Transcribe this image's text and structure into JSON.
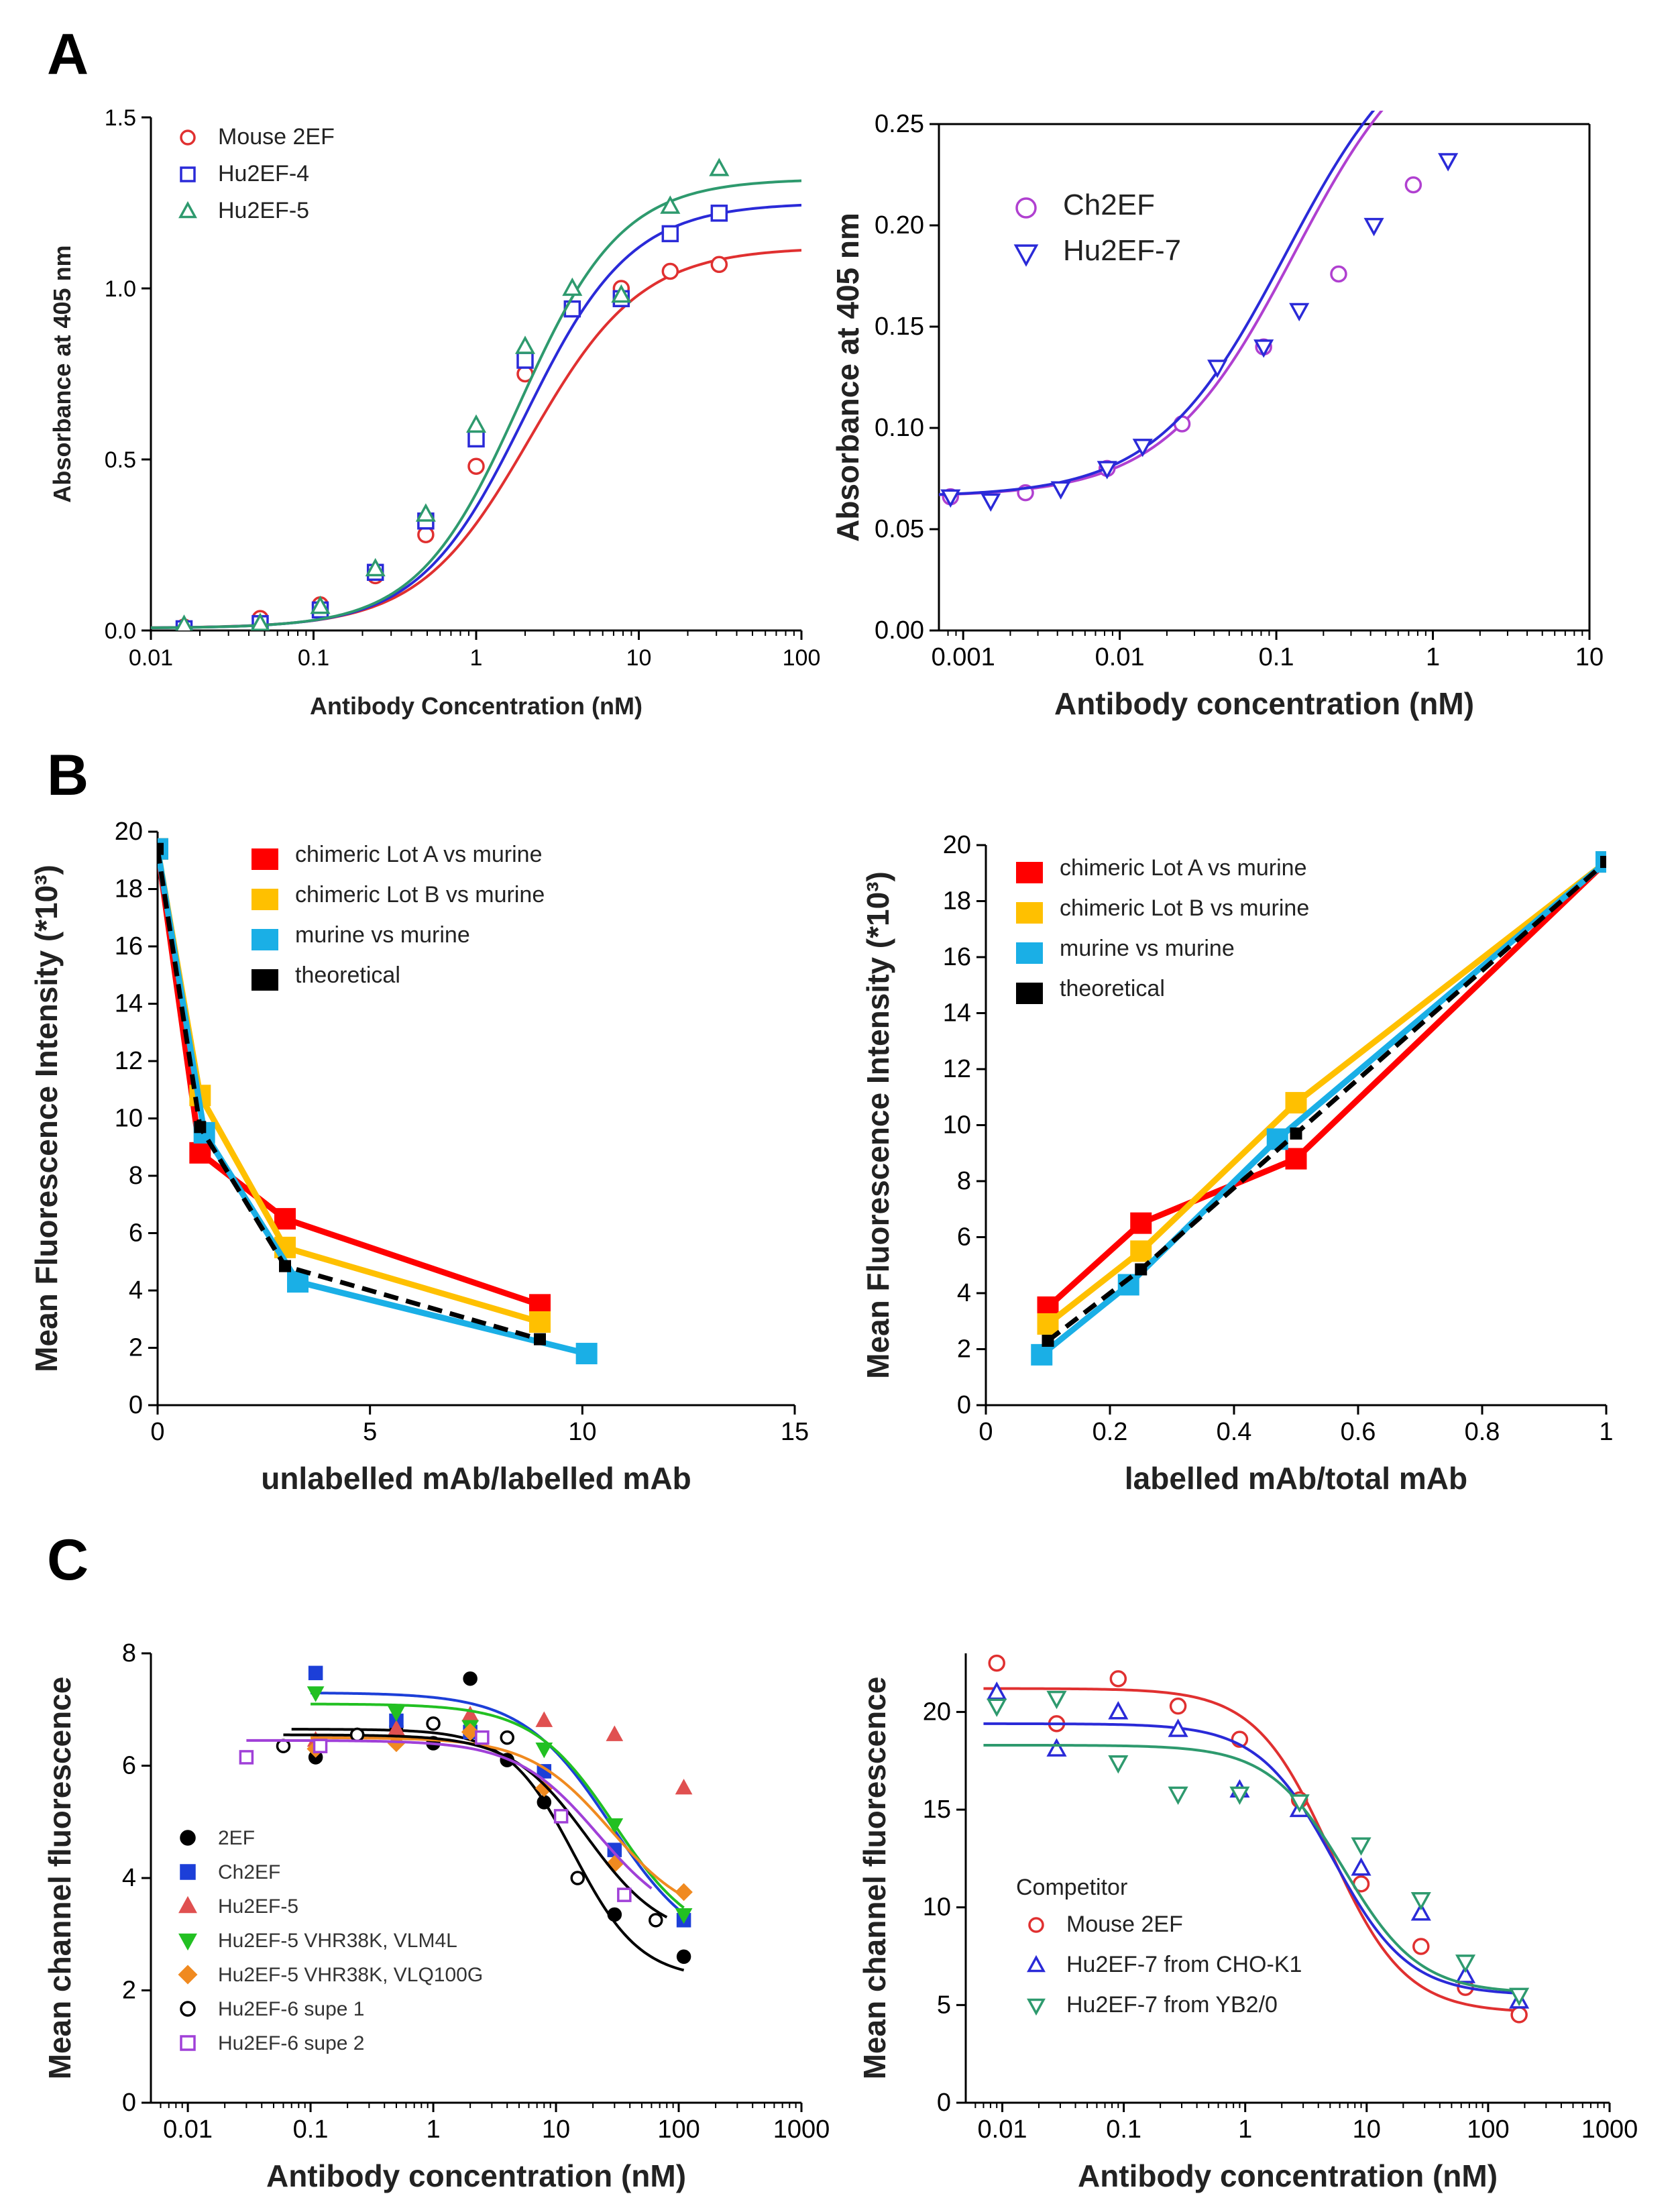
{
  "panel_labels": [
    "A",
    "B",
    "C"
  ],
  "chart_data": [
    {
      "id": "A1",
      "type": "scatter",
      "xscale": "log",
      "title": "",
      "xlabel": "Antibody Concentration (nM)",
      "ylabel": "Absorbance at 405 nm",
      "xlim": [
        0.01,
        100
      ],
      "ylim": [
        0,
        1.5
      ],
      "xticks": [
        0.01,
        0.1,
        1,
        10,
        100
      ],
      "xtick_labels": [
        "0.01",
        "0.1",
        "1",
        "10",
        "100"
      ],
      "yticks": [
        0,
        0.5,
        1.0,
        1.5
      ],
      "ytick_labels": [
        "0.0",
        "0.5",
        "1.0",
        "1.5"
      ],
      "series": [
        {
          "name": "Mouse 2EF",
          "color": "#e03030",
          "marker": "circle",
          "x": [
            0.016,
            0.047,
            0.11,
            0.24,
            0.49,
            1.0,
            2.0,
            3.9,
            7.8,
            15.6,
            31.2
          ],
          "y": [
            0.01,
            0.035,
            0.075,
            0.16,
            0.28,
            0.48,
            0.75,
            0.94,
            1.0,
            1.05,
            1.07
          ],
          "fit": [
            0.007,
            0.63,
            2.15,
            1.12
          ]
        },
        {
          "name": "Hu2EF-4",
          "color": "#2a2ad8",
          "marker": "square",
          "x": [
            0.016,
            0.047,
            0.11,
            0.24,
            0.49,
            1.0,
            2.0,
            3.9,
            7.8,
            15.6,
            31.2
          ],
          "y": [
            0.005,
            0.02,
            0.06,
            0.17,
            0.32,
            0.56,
            0.79,
            0.94,
            0.97,
            1.16,
            1.22
          ],
          "fit": [
            0.007,
            0.6,
            2.0,
            1.25
          ]
        },
        {
          "name": "Hu2EF-5",
          "color": "#2e9a6e",
          "marker": "triangle",
          "x": [
            0.016,
            0.047,
            0.11,
            0.24,
            0.49,
            1.0,
            2.0,
            3.9,
            7.8,
            15.6,
            31.2
          ],
          "y": [
            0.015,
            0.02,
            0.07,
            0.18,
            0.34,
            0.6,
            0.83,
            1.0,
            0.98,
            1.24,
            1.35
          ],
          "fit": [
            0.007,
            0.58,
            1.85,
            1.32
          ]
        }
      ]
    },
    {
      "id": "A2",
      "type": "scatter",
      "xscale": "log",
      "title": "",
      "xlabel": "Antibody concentration (nM)",
      "ylabel": "Absorbance at 405 nm",
      "xlim": [
        0.0007,
        10
      ],
      "ylim": [
        0,
        0.25
      ],
      "xticks": [
        0.001,
        0.01,
        0.1,
        1,
        10
      ],
      "xtick_labels": [
        "0.001",
        "0.01",
        "0.1",
        "1",
        "10"
      ],
      "yticks": [
        0,
        0.05,
        0.1,
        0.15,
        0.2,
        0.25
      ],
      "ytick_labels": [
        "0.00",
        "0.05",
        "0.10",
        "0.15",
        "0.20",
        "0.25"
      ],
      "series": [
        {
          "name": "Ch2EF",
          "color": "#b040d0",
          "marker": "circle",
          "x": [
            0.00083,
            0.0025,
            0.0083,
            0.025,
            0.083,
            0.25,
            0.75
          ],
          "y": [
            0.066,
            0.068,
            0.08,
            0.102,
            0.14,
            0.176,
            0.22
          ],
          "fit": [
            0.066,
            0.24,
            0.13,
            1.05
          ]
        },
        {
          "name": "Hu2EF-7",
          "color": "#2a2ad8",
          "marker": "triangle-down",
          "x": [
            0.00083,
            0.0015,
            0.0042,
            0.0083,
            0.014,
            0.042,
            0.083,
            0.14,
            0.42,
            1.25
          ],
          "y": [
            0.066,
            0.064,
            0.07,
            0.08,
            0.091,
            0.13,
            0.14,
            0.158,
            0.2,
            0.232
          ],
          "fit": [
            0.066,
            0.24,
            0.115,
            1.05
          ]
        }
      ]
    },
    {
      "id": "B1",
      "type": "line",
      "xscale": "linear",
      "title": "",
      "xlabel": "unlabelled mAb/labelled mAb",
      "ylabel": "Mean Fluorescence Intensity (*10³)",
      "xlim": [
        0,
        15
      ],
      "ylim": [
        0,
        20
      ],
      "xticks": [
        0,
        5,
        10,
        15
      ],
      "xtick_labels": [
        "0",
        "5",
        "10",
        "15"
      ],
      "yticks": [
        0,
        2,
        4,
        6,
        8,
        10,
        12,
        14,
        16,
        18,
        20
      ],
      "ytick_labels": [
        "0",
        "2",
        "4",
        "6",
        "8",
        "10",
        "12",
        "14",
        "16",
        "18",
        "20"
      ],
      "series": [
        {
          "name": "chimeric Lot A vs murine",
          "color": "#ff0000",
          "dashed": false,
          "x": [
            0,
            1,
            3,
            9
          ],
          "y": [
            19.4,
            8.8,
            6.5,
            3.5
          ]
        },
        {
          "name": "chimeric Lot B vs murine",
          "color": "#ffc000",
          "dashed": false,
          "x": [
            0,
            1,
            3,
            9
          ],
          "y": [
            19.4,
            10.8,
            5.5,
            2.9
          ]
        },
        {
          "name": "murine vs murine",
          "color": "#1aafe6",
          "dashed": false,
          "x": [
            0,
            1.1,
            3.3,
            10.1
          ],
          "y": [
            19.4,
            9.5,
            4.3,
            1.8
          ]
        },
        {
          "name": "theoretical",
          "color": "#000000",
          "dashed": true,
          "x": [
            0,
            1,
            3,
            9
          ],
          "y": [
            19.4,
            9.7,
            4.85,
            2.3
          ]
        }
      ]
    },
    {
      "id": "B2",
      "type": "line",
      "xscale": "linear",
      "title": "",
      "xlabel": "labelled mAb/total mAb",
      "ylabel": "Mean Fluorescence Intensity (*10³)",
      "xlim": [
        0,
        1
      ],
      "ylim": [
        0,
        20
      ],
      "xticks": [
        0,
        0.2,
        0.4,
        0.6,
        0.8,
        1
      ],
      "xtick_labels": [
        "0",
        "0.2",
        "0.4",
        "0.6",
        "0.8",
        "1"
      ],
      "yticks": [
        0,
        2,
        4,
        6,
        8,
        10,
        12,
        14,
        16,
        18,
        20
      ],
      "ytick_labels": [
        "0",
        "2",
        "4",
        "6",
        "8",
        "10",
        "12",
        "14",
        "16",
        "18",
        "20"
      ],
      "series": [
        {
          "name": "chimeric Lot A vs murine",
          "color": "#ff0000",
          "dashed": false,
          "x": [
            0.1,
            0.25,
            0.5,
            1
          ],
          "y": [
            3.5,
            6.5,
            8.8,
            19.4
          ]
        },
        {
          "name": "chimeric Lot B vs murine",
          "color": "#ffc000",
          "dashed": false,
          "x": [
            0.1,
            0.25,
            0.5,
            1
          ],
          "y": [
            2.9,
            5.5,
            10.8,
            19.4
          ]
        },
        {
          "name": "murine vs murine",
          "color": "#1aafe6",
          "dashed": false,
          "x": [
            0.09,
            0.23,
            0.47,
            1
          ],
          "y": [
            1.8,
            4.3,
            9.5,
            19.4
          ]
        },
        {
          "name": "theoretical",
          "color": "#000000",
          "dashed": true,
          "x": [
            0.1,
            0.25,
            0.5,
            1
          ],
          "y": [
            2.3,
            4.85,
            9.7,
            19.4
          ]
        }
      ]
    },
    {
      "id": "C1",
      "type": "scatter",
      "xscale": "log",
      "title": "",
      "xlabel": "Antibody concentration (nM)",
      "ylabel": "Mean channel fluorescence",
      "xlim": [
        0.005,
        1000
      ],
      "ylim": [
        0,
        8
      ],
      "xticks": [
        0.01,
        0.1,
        1,
        10,
        100,
        1000
      ],
      "xtick_labels": [
        "0.01",
        "0.1",
        "1",
        "10",
        "100",
        "1000"
      ],
      "yticks": [
        0,
        2,
        4,
        6,
        8
      ],
      "ytick_labels": [
        "0",
        "2",
        "4",
        "6",
        "8"
      ],
      "series": [
        {
          "name": "2EF",
          "color": "#000000",
          "marker": "dot-filled",
          "x": [
            0.11,
            0.24,
            0.5,
            1.0,
            2.0,
            4.0,
            8.0,
            30,
            110
          ],
          "y": [
            6.15,
            6.55,
            6.7,
            6.4,
            7.55,
            6.1,
            5.35,
            3.35,
            2.6
          ],
          "fit": [
            6.65,
            2.2,
            14,
            1.6,
            0.07,
            110
          ]
        },
        {
          "name": "Ch2EF",
          "color": "#1c3fd8",
          "marker": "square-filled",
          "x": [
            0.11,
            0.5,
            2.0,
            8.0,
            30,
            110
          ],
          "y": [
            7.65,
            6.8,
            6.6,
            5.9,
            4.5,
            3.25
          ],
          "fit": [
            7.3,
            2.6,
            28,
            1.2,
            0.1,
            110
          ]
        },
        {
          "name": "Hu2EF-5",
          "color": "#e05050",
          "marker": "triangle-filled",
          "x": [
            0.11,
            0.5,
            2.0,
            8.0,
            30,
            110
          ],
          "y": [
            6.45,
            6.65,
            6.9,
            6.8,
            6.55,
            5.6
          ],
          "fit": null
        },
        {
          "name": "Hu2EF-5 VHR38K, VLM4L",
          "color": "#22c022",
          "marker": "triangle-down-filled",
          "x": [
            0.11,
            0.5,
            2.0,
            8.0,
            30,
            110
          ],
          "y": [
            7.3,
            6.95,
            6.7,
            6.3,
            4.95,
            3.35
          ],
          "fit": [
            7.1,
            2.8,
            30,
            1.3,
            0.1,
            110
          ]
        },
        {
          "name": "Hu2EF-5 VHR38K, VLQ100G",
          "color": "#f08a20",
          "marker": "diamond-filled",
          "x": [
            0.11,
            0.5,
            2.0,
            8.0,
            30,
            110
          ],
          "y": [
            6.3,
            6.4,
            6.6,
            5.6,
            4.25,
            3.75
          ],
          "fit": [
            6.5,
            3.2,
            28,
            1.3,
            0.1,
            110
          ]
        },
        {
          "name": "Hu2EF-6 supe 1",
          "color": "#000000",
          "marker": "circle-open",
          "x": [
            0.06,
            0.24,
            1.0,
            4.0,
            15,
            65
          ],
          "y": [
            6.35,
            6.55,
            6.75,
            6.5,
            4.0,
            3.25
          ],
          "fit": [
            6.55,
            2.9,
            18,
            1.4,
            0.06,
            80
          ]
        },
        {
          "name": "Hu2EF-6 supe 2",
          "color": "#a040d8",
          "marker": "square-open",
          "x": [
            0.03,
            0.12,
            2.5,
            11,
            36
          ],
          "y": [
            6.15,
            6.35,
            6.5,
            5.1,
            3.7
          ],
          "fit": [
            6.45,
            3.1,
            22,
            1.3,
            0.03,
            60
          ]
        }
      ]
    },
    {
      "id": "C2",
      "type": "scatter",
      "xscale": "log",
      "title": "",
      "xlabel": "Antibody concentration (nM)",
      "ylabel": "Mean channel fluorescence",
      "xlim": [
        0.005,
        1000
      ],
      "ylim": [
        0,
        23
      ],
      "xticks": [
        0.01,
        0.1,
        1,
        10,
        100,
        1000
      ],
      "xtick_labels": [
        "0.01",
        "0.1",
        "1",
        "10",
        "100",
        "1000"
      ],
      "yticks": [
        0,
        5,
        10,
        15,
        20
      ],
      "ytick_labels": [
        "0",
        "5",
        "10",
        "15",
        "20"
      ],
      "legend_title": "Competitor",
      "series": [
        {
          "name": "Mouse 2EF",
          "color": "#e03030",
          "marker": "circle",
          "x": [
            0.009,
            0.028,
            0.09,
            0.28,
            0.9,
            2.8,
            9,
            28,
            65,
            180
          ],
          "y": [
            22.5,
            19.4,
            21.7,
            20.3,
            18.6,
            15.5,
            11.2,
            8.0,
            5.9,
            4.5
          ],
          "fit": [
            21.2,
            4.6,
            5.0,
            1.4,
            0.007,
            190
          ]
        },
        {
          "name": "Hu2EF-7 from CHO-K1",
          "color": "#2a2ad8",
          "marker": "triangle",
          "x": [
            0.009,
            0.028,
            0.09,
            0.28,
            0.9,
            2.8,
            9,
            28,
            65,
            180
          ],
          "y": [
            21.0,
            18.1,
            20.0,
            19.1,
            16.0,
            15.0,
            12.0,
            9.7,
            6.5,
            5.2
          ],
          "fit": [
            19.4,
            5.5,
            5.3,
            1.4,
            0.007,
            190
          ]
        },
        {
          "name": "Hu2EF-7 from YB2/0",
          "color": "#2e9a6e",
          "marker": "triangle-down",
          "x": [
            0.009,
            0.028,
            0.09,
            0.28,
            0.9,
            2.8,
            9,
            28,
            65,
            180
          ],
          "y": [
            20.3,
            20.7,
            17.4,
            15.8,
            15.8,
            15.4,
            13.2,
            10.4,
            7.2,
            5.5
          ],
          "fit": [
            18.3,
            5.6,
            6.5,
            1.4,
            0.007,
            190
          ]
        }
      ]
    }
  ]
}
